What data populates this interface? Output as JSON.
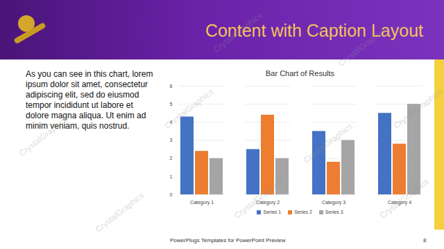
{
  "slide": {
    "title": "Content with Caption Layout",
    "caption": "As you can see in this chart, lorem ipsum dolor sit amet, consectetur adipiscing elit, sed do eiusmod tempor incididunt ut labore et dolore magna aliqua. Ut enim ad minim veniam, quis nostrud.",
    "footer": "PowerPlugs Templates for PowerPoint Preview",
    "page_number": 8,
    "watermark": "CrystalGraphics"
  },
  "chart_data": {
    "type": "bar",
    "title": "Bar Chart of Results",
    "categories": [
      "Category 1",
      "Category 2",
      "Category 3",
      "Category 4"
    ],
    "series": [
      {
        "name": "Series 1",
        "color": "#4472c4",
        "values": [
          4.3,
          2.5,
          3.5,
          4.5
        ]
      },
      {
        "name": "Series 2",
        "color": "#ed7d31",
        "values": [
          2.4,
          4.4,
          1.8,
          2.8
        ]
      },
      {
        "name": "Series 3",
        "color": "#a5a5a5",
        "values": [
          2,
          2,
          3,
          5
        ]
      }
    ],
    "ylim": [
      0,
      6
    ],
    "yticks": [
      0,
      1,
      2,
      3,
      4,
      5,
      6
    ],
    "grid": true,
    "legend": "bottom"
  }
}
